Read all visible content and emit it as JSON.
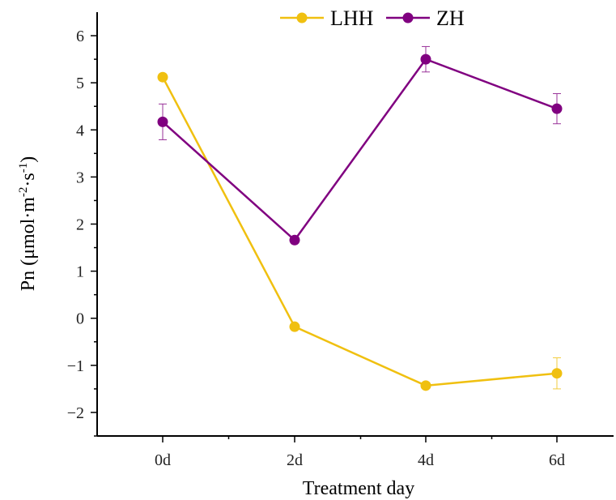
{
  "chart_data": {
    "type": "line",
    "categories": [
      "0d",
      "2d",
      "4d",
      "6d"
    ],
    "xlabel": "Treatment day",
    "ylabel": {
      "base": "Pn (μmol·m",
      "sup1": "-2",
      "mid": "·s",
      "sup2": "-1",
      "end": ")"
    },
    "ylim": [
      -2.5,
      6.5
    ],
    "yticks": [
      -2,
      -1,
      0,
      1,
      2,
      3,
      4,
      5,
      6
    ],
    "ytick_labels": [
      "−2",
      "−1",
      "0",
      "1",
      "2",
      "3",
      "4",
      "5",
      "6"
    ],
    "legend_position": "top-center",
    "series": [
      {
        "name": "LHH",
        "color": "#F0C010",
        "values": [
          5.12,
          -0.18,
          -1.43,
          -1.17
        ],
        "errors": [
          0,
          0,
          0,
          0.33
        ]
      },
      {
        "name": "ZH",
        "color": "#800080",
        "values": [
          4.17,
          1.66,
          5.5,
          4.45
        ],
        "errors": [
          0.38,
          0,
          0.27,
          0.32
        ]
      }
    ]
  }
}
